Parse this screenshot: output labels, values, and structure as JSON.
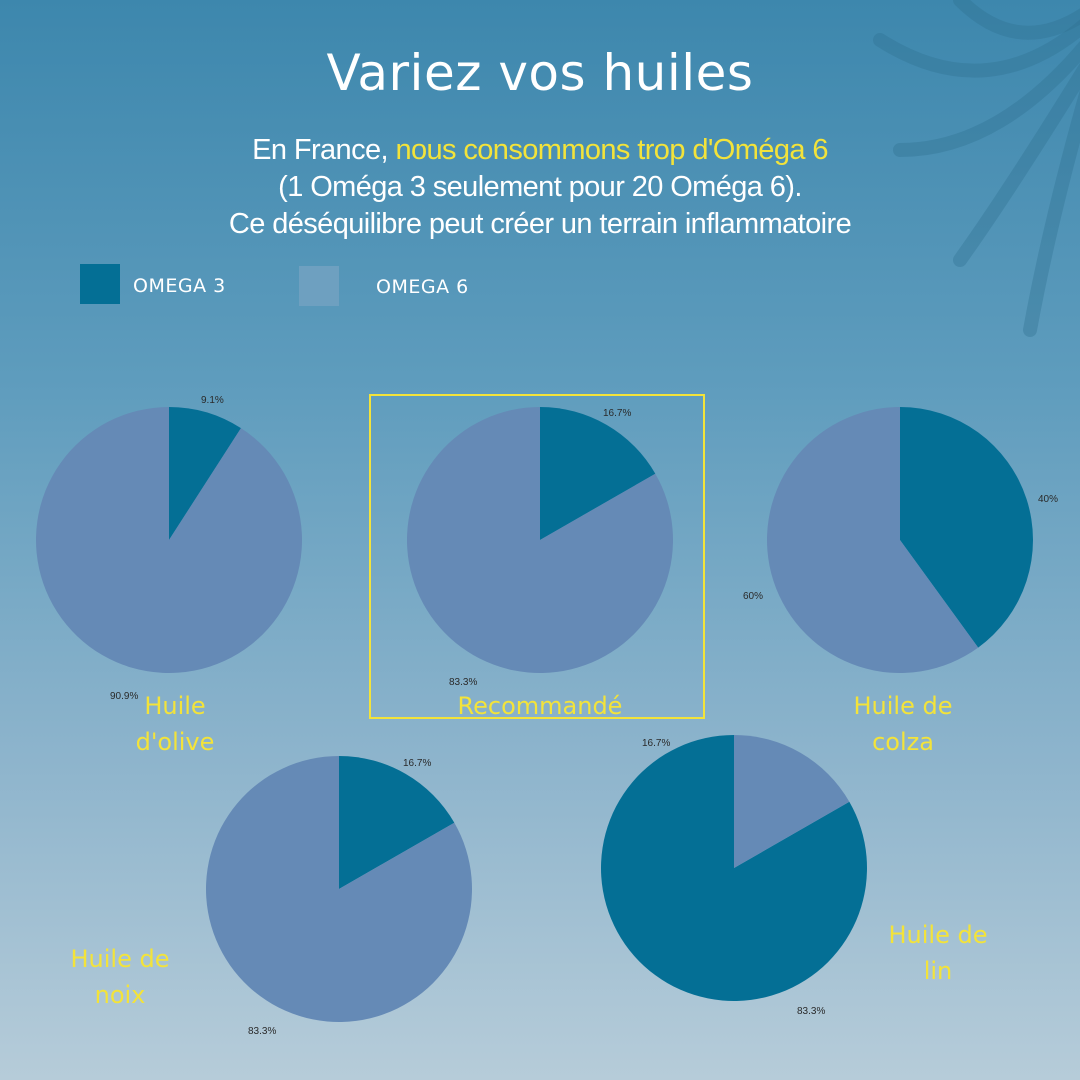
{
  "title": "Variez vos huiles",
  "subtitle": {
    "line1_prefix": "En France, ",
    "line1_highlight": "nous consommons trop d'Oméga 6",
    "line2": "(1 Oméga 3 seulement pour 20 Oméga 6).",
    "line3": "Ce déséquilibre peut créer un terrain inflammatoire"
  },
  "colors": {
    "omega3": "#046f95",
    "omega6": "#658ab6",
    "highlight": "#f3e33a"
  },
  "legend": [
    {
      "label": "OMEGA 3",
      "color": "#046f95"
    },
    {
      "label": "OMEGA 6",
      "color": "#6ea0c0"
    }
  ],
  "chart_data": [
    {
      "type": "pie",
      "name": "Huile d'olive",
      "label_lines": [
        "Huile",
        "d'olive"
      ],
      "slices": [
        {
          "series": "OMEGA 3",
          "value": 9.1,
          "label": "9.1%"
        },
        {
          "series": "OMEGA 6",
          "value": 90.9,
          "label": "90.9%"
        }
      ]
    },
    {
      "type": "pie",
      "name": "Recommandé",
      "label_lines": [
        "Recommandé"
      ],
      "highlighted": true,
      "slices": [
        {
          "series": "OMEGA 3",
          "value": 16.7,
          "label": "16.7%"
        },
        {
          "series": "OMEGA 6",
          "value": 83.3,
          "label": "83.3%"
        }
      ]
    },
    {
      "type": "pie",
      "name": "Huile de colza",
      "label_lines": [
        "Huile de",
        "colza"
      ],
      "slices": [
        {
          "series": "OMEGA 3",
          "value": 40,
          "label": "40%"
        },
        {
          "series": "OMEGA 6",
          "value": 60,
          "label": "60%"
        }
      ]
    },
    {
      "type": "pie",
      "name": "Huile de noix",
      "label_lines": [
        "Huile de",
        "noix"
      ],
      "slices": [
        {
          "series": "OMEGA 3",
          "value": 16.7,
          "label": "16.7%"
        },
        {
          "series": "OMEGA 6",
          "value": 83.3,
          "label": "83.3%"
        }
      ]
    },
    {
      "type": "pie",
      "name": "Huile de lin",
      "label_lines": [
        "Huile de",
        "lin"
      ],
      "slices": [
        {
          "series": "OMEGA 3",
          "value": 83.3,
          "label": "83.3%"
        },
        {
          "series": "OMEGA 6",
          "value": 16.7,
          "label": "16.7%"
        }
      ]
    }
  ]
}
